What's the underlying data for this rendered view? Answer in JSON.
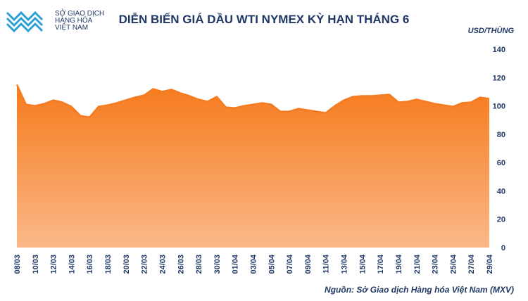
{
  "logo": {
    "lines": [
      "SỞ GIAO DỊCH",
      "HÀNG HÓA",
      "VIỆT NAM"
    ]
  },
  "chart_data": {
    "type": "area",
    "title": "DIỄN BIẾN GIÁ DẦU WTI NYMEX KỲ HẠN THÁNG 6",
    "y_label": "USD/THÙNG",
    "source": "Nguồn: Sở Giao dịch Hàng hóa Việt Nam (MXV)",
    "color": "#f47b20",
    "categories": [
      "08/03",
      null,
      "10/03",
      null,
      "12/03",
      null,
      "14/03",
      null,
      "16/03",
      null,
      "18/03",
      null,
      "20/03",
      null,
      "22/03",
      null,
      "24/03",
      null,
      "26/03",
      null,
      "28/03",
      null,
      "30/03",
      null,
      "01/04",
      null,
      "03/04",
      null,
      "05/04",
      null,
      "07/04",
      null,
      "09/04",
      null,
      "11/04",
      null,
      "13/04",
      null,
      "15/04",
      null,
      "17/04",
      null,
      "19/04",
      null,
      "21/04",
      null,
      "23/04",
      null,
      "25/04",
      null,
      "27/04",
      null,
      "29/04"
    ],
    "values": [
      115,
      101,
      100,
      101.5,
      104,
      102.5,
      99.5,
      93,
      92,
      99.5,
      100.5,
      102,
      104,
      106,
      107.5,
      112,
      110,
      111.5,
      109,
      107,
      104.5,
      103,
      106.5,
      99,
      98.5,
      100,
      101,
      102,
      101,
      96,
      96,
      98,
      97,
      96,
      95,
      100,
      104,
      106.5,
      107,
      107,
      107.5,
      108,
      102.5,
      103,
      104.5,
      103,
      101.5,
      100.5,
      99.5,
      102,
      102.5,
      106,
      105
    ],
    "ylim": [
      0,
      140
    ],
    "yticks": [
      0,
      20,
      40,
      60,
      80,
      100,
      120,
      140
    ],
    "grid": false
  }
}
